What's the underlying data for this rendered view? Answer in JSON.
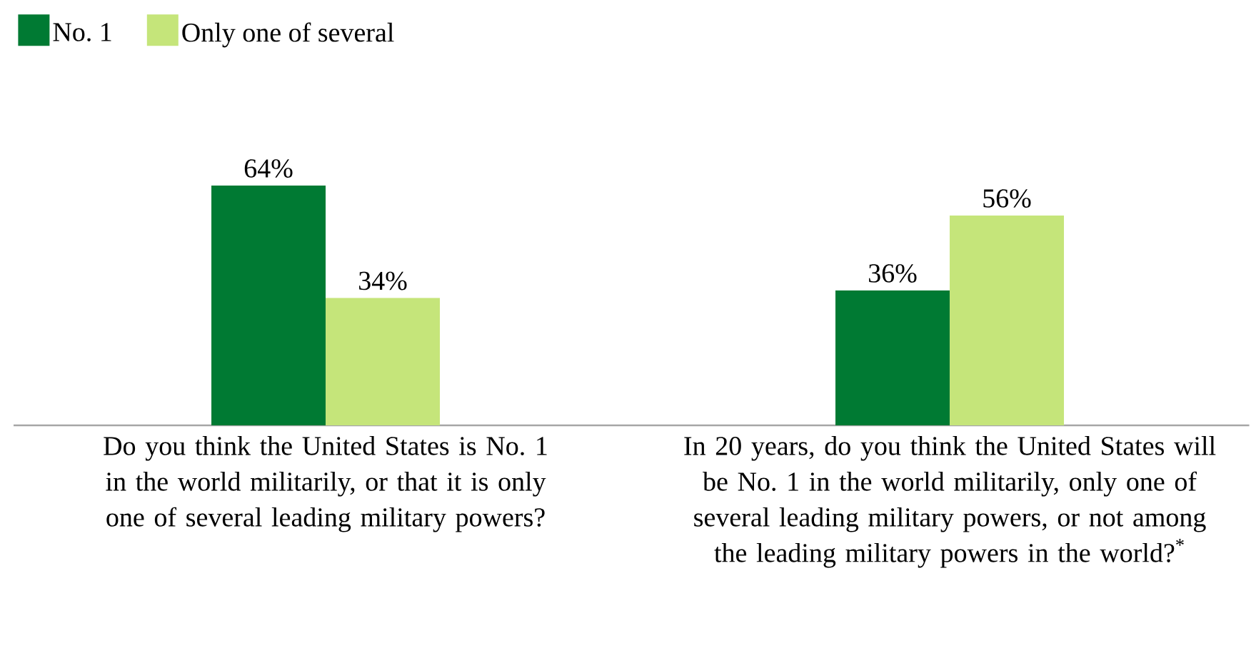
{
  "chart_data": {
    "type": "bar",
    "categories": [
      "Do you think the United States is No. 1 in the world militarily, or that it is only one of several leading military powers?",
      "In 20 years, do you think the United States will be No. 1 in the world militarily, only one of several leading military powers, or not among the leading military powers in the world?$^{*}$"
    ],
    "series": [
      {
        "name": "No. 1",
        "color": "#007a33",
        "values": [
          64,
          36
        ],
        "value_labels": [
          "64%",
          "36%"
        ]
      },
      {
        "name": "Only one of several",
        "color": "#c5e57a",
        "values": [
          34,
          56
        ],
        "value_labels": [
          "34%",
          "56%"
        ]
      }
    ],
    "legend": "top left"
  }
}
